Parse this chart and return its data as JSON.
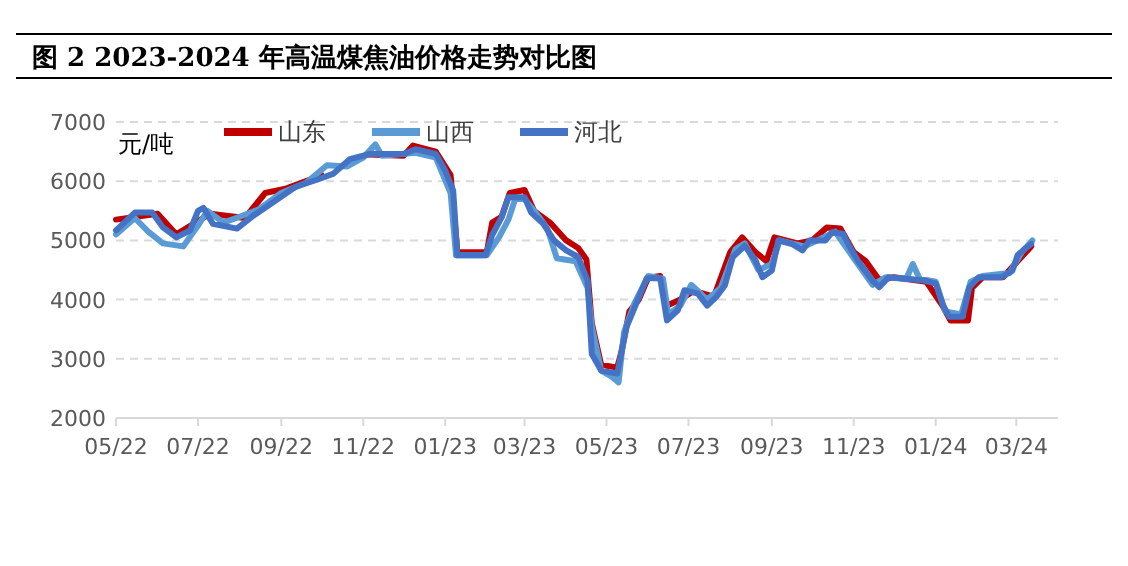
{
  "chart_data": {
    "type": "line",
    "title": "图 2 2023-2024 年高温煤焦油价格走势对比图",
    "ylabel": "元/吨",
    "xlim": [
      "2022-05-01",
      "2024-04-01"
    ],
    "xticks": [
      {
        "value": "2022-05-01",
        "label": "05/22"
      },
      {
        "value": "2022-07-01",
        "label": "07/22"
      },
      {
        "value": "2022-09-01",
        "label": "09/22"
      },
      {
        "value": "2022-11-01",
        "label": "11/22"
      },
      {
        "value": "2023-01-01",
        "label": "01/23"
      },
      {
        "value": "2023-03-01",
        "label": "03/23"
      },
      {
        "value": "2023-05-01",
        "label": "05/23"
      },
      {
        "value": "2023-07-01",
        "label": "07/23"
      },
      {
        "value": "2023-09-01",
        "label": "09/23"
      },
      {
        "value": "2023-11-01",
        "label": "11/23"
      },
      {
        "value": "2024-01-01",
        "label": "01/24"
      },
      {
        "value": "2024-03-01",
        "label": "03/24"
      }
    ],
    "ylim": [
      2000,
      7000
    ],
    "yticks": [
      2000,
      3000,
      4000,
      5000,
      6000,
      7000
    ],
    "grid": "y",
    "legend": "top",
    "series": [
      {
        "name": "山东",
        "color": "#c00000",
        "x": [
          "2022-05-01",
          "2022-06-01",
          "2022-06-15",
          "2022-07-10",
          "2022-08-05",
          "2022-08-20",
          "2022-09-05",
          "2022-10-01",
          "2022-10-20",
          "2022-11-05",
          "2022-12-01",
          "2022-12-08",
          "2022-12-25",
          "2023-01-05",
          "2023-01-10",
          "2023-02-01",
          "2023-02-05",
          "2023-02-12",
          "2023-02-18",
          "2023-03-01",
          "2023-03-08",
          "2023-03-20",
          "2023-04-01",
          "2023-04-10",
          "2023-04-16",
          "2023-04-20",
          "2023-04-27",
          "2023-05-09",
          "2023-05-12",
          "2023-05-18",
          "2023-05-25",
          "2023-06-01",
          "2023-06-10",
          "2023-06-15",
          "2023-06-25",
          "2023-07-05",
          "2023-07-20",
          "2023-08-01",
          "2023-08-10",
          "2023-08-20",
          "2023-08-28",
          "2023-09-03",
          "2023-09-20",
          "2023-10-01",
          "2023-10-12",
          "2023-10-22",
          "2023-11-01",
          "2023-11-10",
          "2023-11-20",
          "2023-12-01",
          "2023-12-25",
          "2024-01-06",
          "2024-01-12",
          "2024-01-25",
          "2024-01-28",
          "2024-02-05",
          "2024-02-20",
          "2024-03-02",
          "2024-03-12"
        ],
        "values": [
          5350,
          5450,
          5100,
          5450,
          5380,
          5800,
          5880,
          6100,
          null,
          6450,
          6430,
          6600,
          6500,
          6100,
          4800,
          4800,
          5300,
          5400,
          5800,
          5850,
          5500,
          5300,
          5000,
          4870,
          4680,
          3600,
          2900,
          2850,
          3100,
          3800,
          4000,
          4370,
          4400,
          3900,
          4000,
          4150,
          4050,
          4800,
          5050,
          4800,
          4650,
          5050,
          4950,
          5000,
          5220,
          5200,
          4800,
          4650,
          4330,
          4380,
          4300,
          3900,
          3650,
          3650,
          4200,
          4380,
          4380,
          4650,
          4900
        ]
      },
      {
        "name": "山西",
        "color": "#5b9bd5",
        "x": [
          "2022-05-01",
          "2022-05-15",
          "2022-05-25",
          "2022-06-05",
          "2022-06-20",
          "2022-07-01",
          "2022-07-08",
          "2022-07-20",
          "2022-08-01",
          "2022-08-15",
          "2022-09-01",
          "2022-09-20",
          "2022-10-05",
          "2022-10-20",
          "2022-11-01",
          "2022-11-10",
          "2022-11-15",
          "2022-12-10",
          "2022-12-25",
          "2023-01-05",
          "2023-01-09",
          "2023-02-01",
          "2023-02-10",
          "2023-02-17",
          "2023-02-22",
          "2023-03-01",
          "2023-03-10",
          "2023-03-18",
          "2023-03-25",
          "2023-04-08",
          "2023-04-17",
          "2023-04-20",
          "2023-04-27",
          "2023-05-05",
          "2023-05-10",
          "2023-05-14",
          "2023-05-22",
          "2023-06-01",
          "2023-06-12",
          "2023-06-16",
          "2023-06-25",
          "2023-07-03",
          "2023-07-15",
          "2023-07-25",
          "2023-08-05",
          "2023-08-12",
          "2023-08-22",
          "2023-09-01",
          "2023-09-07",
          "2023-09-25",
          "2023-10-05",
          "2023-10-18",
          "2023-11-01",
          "2023-11-15",
          "2023-11-25",
          "2023-12-10",
          "2023-12-15",
          "2023-12-20",
          "2024-01-01",
          "2024-01-08",
          "2024-01-20",
          "2024-01-27",
          "2024-02-05",
          "2024-02-25",
          "2024-03-05",
          "2024-03-13"
        ],
        "values": [
          5100,
          5380,
          5150,
          4950,
          4900,
          5250,
          5500,
          5300,
          5400,
          5520,
          5800,
          5980,
          6270,
          6250,
          6400,
          6620,
          6430,
          6480,
          6400,
          5800,
          4750,
          4750,
          5050,
          5350,
          5700,
          5700,
          5450,
          5200,
          4700,
          4650,
          4200,
          3550,
          2800,
          2700,
          2600,
          3450,
          3950,
          4400,
          4350,
          3750,
          3900,
          4250,
          4000,
          4200,
          4850,
          4950,
          4500,
          4600,
          5000,
          4900,
          5000,
          5150,
          4700,
          4250,
          4380,
          4350,
          4600,
          4350,
          4300,
          3800,
          3750,
          4300,
          4400,
          4450,
          4800,
          5000
        ]
      },
      {
        "name": "河北",
        "color": "#4472c4",
        "x": [
          "2022-05-01",
          "2022-05-15",
          "2022-05-28",
          "2022-06-05",
          "2022-06-15",
          "2022-06-25",
          "2022-07-01",
          "2022-07-05",
          "2022-07-12",
          "2022-07-30",
          "2022-08-10",
          "2022-08-28",
          "2022-09-12",
          "2022-09-27",
          "2022-10-10",
          "2022-10-22",
          "2022-11-06",
          "2022-12-01",
          "2022-12-10",
          "2022-12-25",
          "2023-01-01",
          "2023-01-07",
          "2023-01-10",
          "2023-01-31",
          "2023-02-05",
          "2023-02-12",
          "2023-02-17",
          "2023-03-01",
          "2023-03-06",
          "2023-03-15",
          "2023-03-23",
          "2023-04-01",
          "2023-04-10",
          "2023-04-17",
          "2023-04-20",
          "2023-04-27",
          "2023-05-09",
          "2023-05-16",
          "2023-05-24",
          "2023-05-31",
          "2023-06-10",
          "2023-06-15",
          "2023-06-23",
          "2023-06-28",
          "2023-07-08",
          "2023-07-15",
          "2023-07-22",
          "2023-07-28",
          "2023-08-03",
          "2023-08-12",
          "2023-08-20",
          "2023-08-25",
          "2023-09-01",
          "2023-09-06",
          "2023-09-16",
          "2023-09-24",
          "2023-09-29",
          "2023-10-11",
          "2023-10-16",
          "2023-10-24",
          "2023-10-29",
          "2023-11-04",
          "2023-11-15",
          "2023-11-20",
          "2023-11-27",
          "2023-12-09",
          "2023-12-24",
          "2024-01-01",
          "2024-01-06",
          "2024-01-11",
          "2024-01-21",
          "2024-01-26",
          "2024-02-02",
          "2024-02-19",
          "2024-02-27",
          "2024-03-02",
          "2024-03-09",
          "2024-03-12"
        ],
        "values": [
          5170,
          5470,
          5470,
          5220,
          5050,
          5170,
          5500,
          5550,
          5280,
          5200,
          5400,
          5680,
          5910,
          6020,
          6130,
          6370,
          6460,
          6460,
          6540,
          6460,
          6180,
          5840,
          4750,
          4750,
          5090,
          5390,
          5730,
          5730,
          5470,
          5280,
          5000,
          4830,
          4720,
          4320,
          3080,
          2800,
          2750,
          3540,
          3980,
          4360,
          4360,
          3650,
          3820,
          4160,
          4100,
          3900,
          4050,
          4240,
          4720,
          4910,
          4660,
          4380,
          4490,
          5000,
          4940,
          4830,
          5000,
          5000,
          5140,
          5110,
          4890,
          4660,
          4320,
          4210,
          4380,
          4350,
          4320,
          4270,
          3930,
          3710,
          3710,
          4210,
          4380,
          4380,
          4490,
          4750,
          4890,
          4940
        ]
      }
    ]
  }
}
